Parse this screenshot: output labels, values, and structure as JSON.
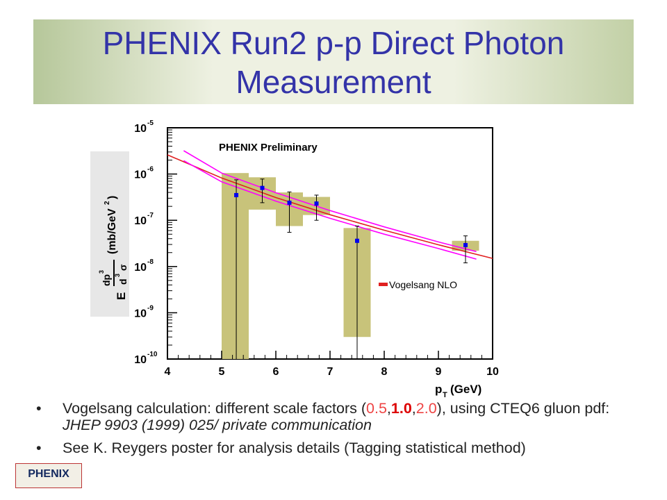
{
  "slide": {
    "title": "PHENIX Run2 p-p Direct Photon Measurement",
    "bullets": [
      {
        "parts": [
          {
            "text": "Vogelsang calculation: different scale factors (",
            "style": "plain"
          },
          {
            "text": "0.5",
            "style": "red"
          },
          {
            "text": ",",
            "style": "plain"
          },
          {
            "text": "1.0",
            "style": "redbold"
          },
          {
            "text": ",",
            "style": "plain"
          },
          {
            "text": "2.0",
            "style": "red"
          },
          {
            "text": "),  using CTEQ6 gluon pdf: ",
            "style": "plain"
          },
          {
            "text": "JHEP 9903 (1999) 025/ private communication",
            "style": "italic"
          }
        ]
      },
      {
        "parts": [
          {
            "text": "See K. Reygers poster for analysis details (Tagging statistical method)",
            "style": "plain"
          }
        ]
      }
    ],
    "logo": "PHENIX",
    "colors": {
      "title": "#3333a8",
      "data_marker": "#0000ee",
      "syst_band": "#c8c37a",
      "nlo_central": "#e02020",
      "nlo_scale": "#ff00ff"
    }
  },
  "chart_data": {
    "type": "scatter",
    "annotation": "PHENIX Preliminary",
    "xlabel": "p_T (GeV)",
    "ylabel": "E d³σ/dp³ (mb/GeV²)",
    "xlim": [
      4,
      10
    ],
    "ylim": [
      1e-10,
      1e-05
    ],
    "yscale": "log",
    "x_ticks": [
      4,
      5,
      6,
      7,
      8,
      9,
      10
    ],
    "y_ticks": [
      {
        "value": 1e-10,
        "label": "10",
        "exp": "-10"
      },
      {
        "value": 1e-09,
        "label": "10",
        "exp": "-9"
      },
      {
        "value": 1e-08,
        "label": "10",
        "exp": "-8"
      },
      {
        "value": 1e-07,
        "label": "10",
        "exp": "-7"
      },
      {
        "value": 1e-06,
        "label": "10",
        "exp": "-6"
      },
      {
        "value": 1e-05,
        "label": "10",
        "exp": "-5"
      }
    ],
    "legend": [
      {
        "name": "Vogelsang NLO",
        "color": "#e02020"
      }
    ],
    "legend_placement": "bottom-right",
    "data_series": {
      "points": [
        {
          "x": 5.27,
          "y": 3.5e-07,
          "stat_low": 1e-10,
          "stat_high": 7.5e-07,
          "sys_x0": 5.0,
          "sys_x1": 5.5,
          "sys_low": 1e-10,
          "sys_high": 1.05e-06
        },
        {
          "x": 5.75,
          "y": 5e-07,
          "stat_low": 2.4e-07,
          "stat_high": 7.8e-07,
          "sys_x0": 5.5,
          "sys_x1": 6.0,
          "sys_low": 1.7e-07,
          "sys_high": 8.5e-07
        },
        {
          "x": 6.25,
          "y": 2.4e-07,
          "stat_low": 5.5e-08,
          "stat_high": 4.1e-07,
          "sys_x0": 6.0,
          "sys_x1": 6.5,
          "sys_low": 7.5e-08,
          "sys_high": 4e-07
        },
        {
          "x": 6.75,
          "y": 2.3e-07,
          "stat_low": 1e-07,
          "stat_high": 3.5e-07,
          "sys_x0": 6.5,
          "sys_x1": 7.0,
          "sys_low": 1.3e-07,
          "sys_high": 3.2e-07
        },
        {
          "x": 7.5,
          "y": 3.6e-08,
          "stat_low": 1e-10,
          "stat_high": 7.5e-08,
          "sys_x0": 7.25,
          "sys_x1": 7.75,
          "sys_low": 3e-10,
          "sys_high": 6.8e-08
        },
        {
          "x": 9.5,
          "y": 2.9e-08,
          "stat_low": 1.2e-08,
          "stat_high": 4.6e-08,
          "sys_x0": 9.25,
          "sys_x1": 9.75,
          "sys_low": 2.2e-08,
          "sys_high": 3.6e-08
        }
      ]
    },
    "nlo_curves": [
      {
        "name": "scale 1.0",
        "color": "#e02020",
        "x": [
          4.0,
          5.0,
          6.0,
          7.0,
          8.0,
          9.0,
          10.0
        ],
        "y": [
          2.6e-06,
          8.2e-07,
          3.1e-07,
          1.32e-07,
          6.1e-08,
          2.95e-08,
          1.5e-08
        ]
      },
      {
        "name": "scale 0.5",
        "color": "#ff00ff",
        "x": [
          4.3,
          5.0,
          6.0,
          7.0,
          8.0,
          9.0,
          9.7
        ],
        "y": [
          3.2e-06,
          1.05e-06,
          3.95e-07,
          1.62e-07,
          7.2e-08,
          3.4e-08,
          2.1e-08
        ]
      },
      {
        "name": "scale 2.0",
        "color": "#ff00ff",
        "x": [
          4.3,
          5.0,
          6.0,
          7.0,
          8.0,
          9.0,
          9.7
        ],
        "y": [
          1.95e-06,
          6.8e-07,
          2.6e-07,
          1.1e-07,
          5e-08,
          2.45e-08,
          1.45e-08
        ]
      }
    ]
  }
}
